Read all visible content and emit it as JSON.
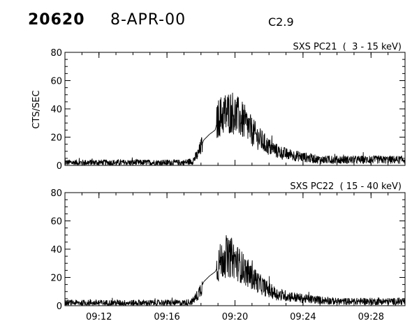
{
  "header": {
    "event_number": "20620",
    "date": "8-APR-00",
    "flare_class": "C2.9"
  },
  "chart_data": [
    {
      "type": "line",
      "title": "SXS PC21  (  3 - 15 keV)",
      "ylabel": "CTS/SEC",
      "xlabel": "",
      "ylim": [
        0,
        80
      ],
      "yticks": [
        0,
        20,
        40,
        60,
        80
      ],
      "x_range": [
        "09:10:00",
        "09:30:00"
      ],
      "xtick_labels": [],
      "grid": false,
      "legend": "none",
      "series": [
        {
          "time": [
            "09:10:00",
            "09:11:00",
            "09:12:00",
            "09:13:00",
            "09:14:00",
            "09:15:00",
            "09:16:00",
            "09:17:00",
            "09:17:30",
            "09:17:50",
            "09:18:10",
            "09:18:30",
            "09:18:50",
            "09:19:00",
            "09:19:10",
            "09:19:30",
            "09:19:50",
            "09:20:00",
            "09:20:20",
            "09:20:40",
            "09:21:00",
            "09:21:30",
            "09:22:00",
            "09:22:30",
            "09:23:00",
            "09:24:00",
            "09:25:00",
            "09:26:00",
            "09:27:00",
            "09:28:00",
            "09:29:00",
            "09:30:00"
          ],
          "cts_per_sec": [
            2,
            2,
            2,
            2,
            2,
            2,
            2,
            2,
            3,
            8,
            18,
            22,
            25,
            33,
            35,
            37,
            38,
            36,
            33,
            29,
            24,
            18,
            13,
            10,
            8,
            6,
            4,
            4,
            4,
            4,
            4,
            4
          ]
        }
      ]
    },
    {
      "type": "line",
      "title": "SXS PC22  ( 15 - 40 keV)",
      "ylabel": "",
      "xlabel": "",
      "ylim": [
        0,
        80
      ],
      "yticks": [
        0,
        20,
        40,
        60,
        80
      ],
      "x_range": [
        "09:10:00",
        "09:30:00"
      ],
      "xtick_labels": [
        "09:12",
        "09:16",
        "09:20",
        "09:24",
        "09:28"
      ],
      "grid": false,
      "legend": "none",
      "series": [
        {
          "time": [
            "09:10:00",
            "09:11:00",
            "09:12:00",
            "09:13:00",
            "09:14:00",
            "09:15:00",
            "09:16:00",
            "09:17:00",
            "09:17:30",
            "09:17:50",
            "09:18:10",
            "09:18:30",
            "09:18:50",
            "09:19:00",
            "09:19:10",
            "09:19:30",
            "09:19:50",
            "09:20:00",
            "09:20:20",
            "09:20:40",
            "09:21:00",
            "09:21:30",
            "09:22:00",
            "09:22:30",
            "09:23:00",
            "09:24:00",
            "09:25:00",
            "09:26:00",
            "09:27:00",
            "09:28:00",
            "09:29:00",
            "09:30:00"
          ],
          "cts_per_sec": [
            2,
            2,
            2,
            2,
            2,
            2,
            2,
            2,
            3,
            8,
            17,
            21,
            24,
            28,
            32,
            34,
            34,
            32,
            28,
            24,
            20,
            15,
            11,
            8,
            7,
            5,
            4,
            3,
            3,
            3,
            3,
            3
          ]
        }
      ]
    }
  ]
}
